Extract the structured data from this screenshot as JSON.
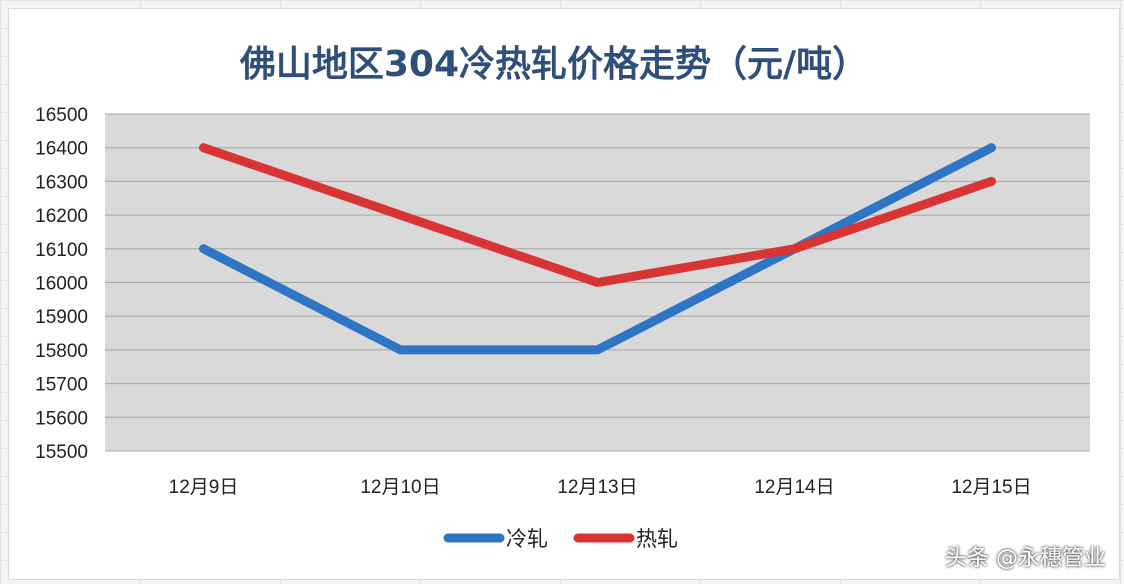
{
  "chart_data": {
    "type": "line",
    "title": "佛山地区304冷热轧价格走势（元/吨）",
    "categories": [
      "12月9日",
      "12月10日",
      "12月13日",
      "12月14日",
      "12月15日"
    ],
    "ylim": [
      15500,
      16500
    ],
    "yticks": [
      16500,
      16400,
      16300,
      16200,
      16100,
      16000,
      15900,
      15800,
      15700,
      15600,
      15500
    ],
    "grid": true,
    "legend_position": "bottom",
    "series": [
      {
        "name": "冷轧",
        "color": "#2e75c6",
        "values": [
          16100,
          15800,
          15800,
          16100,
          16400
        ]
      },
      {
        "name": "热轧",
        "color": "#d93434",
        "values": [
          16400,
          16200,
          16000,
          16100,
          16300
        ]
      }
    ]
  },
  "watermark": "头条 @永穗管业",
  "colors": {
    "plot_background": "#d9d9d9",
    "gridline": "#a6a6a6",
    "title": "#2f4f7a"
  }
}
